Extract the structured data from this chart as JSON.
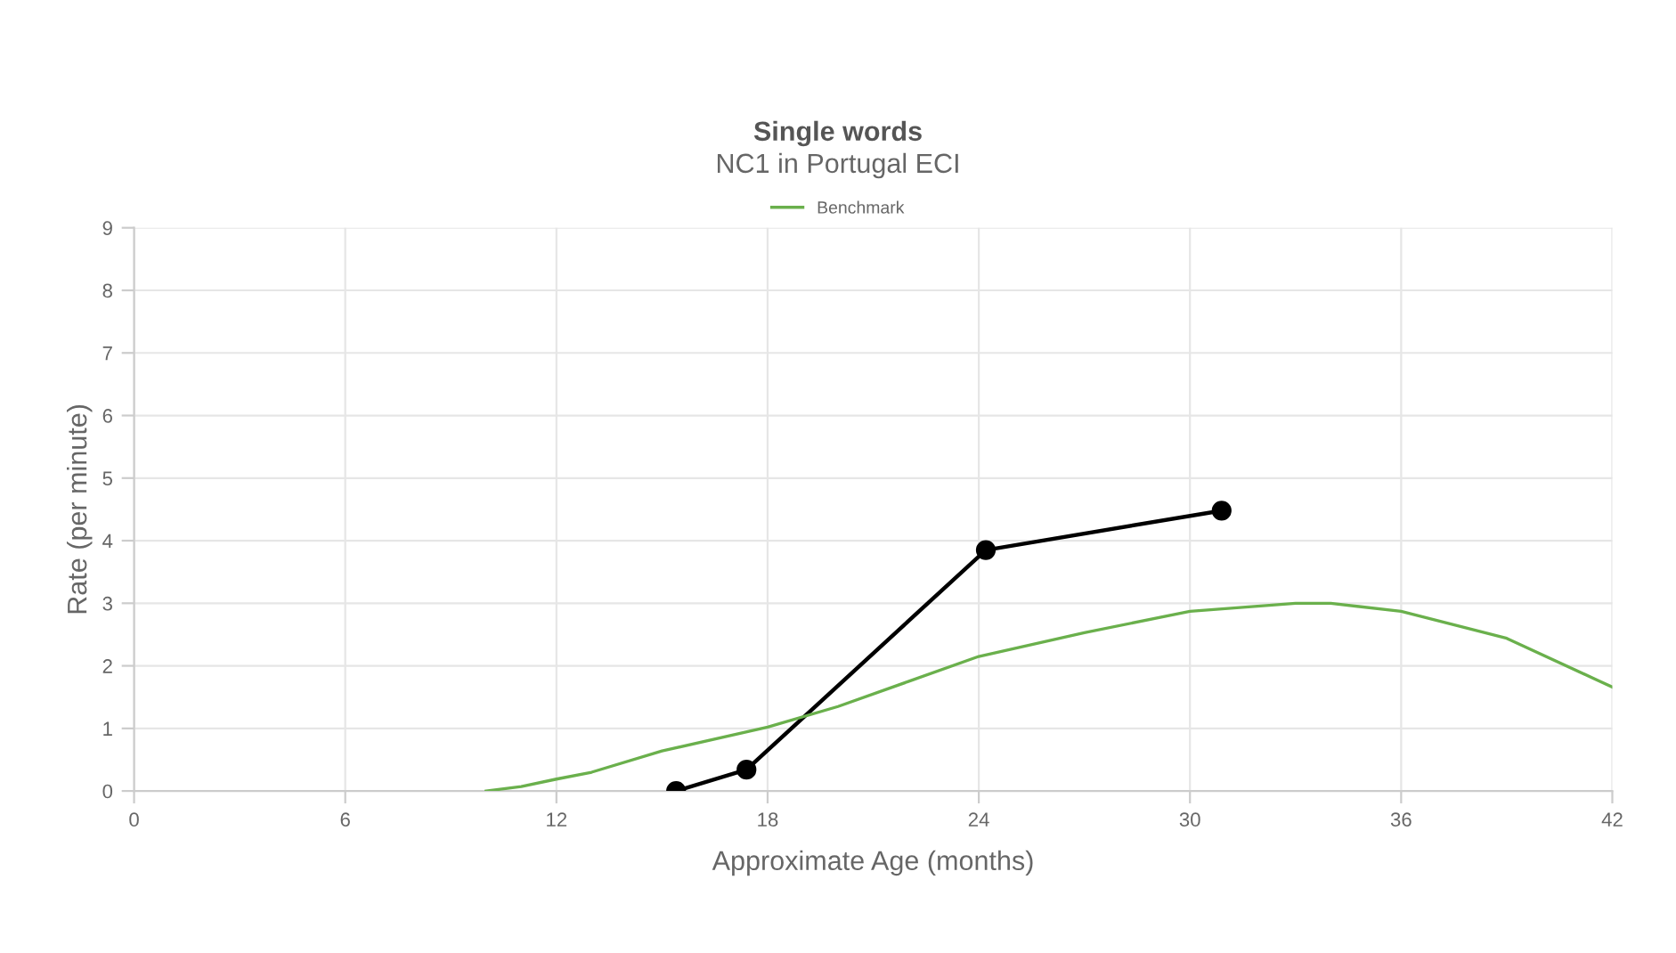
{
  "chart_data": {
    "type": "line",
    "title": "Single words",
    "subtitle": "NC1 in Portugal ECI",
    "xlabel": "Approximate Age (months)",
    "ylabel": "Rate (per minute)",
    "series": [
      {
        "x": [
          15.4,
          17.4,
          24.2,
          30.9
        ],
        "values": [
          0,
          0.34,
          3.85,
          4.48
        ],
        "color": "#000000",
        "marker": "circle"
      },
      {
        "name": "Benchmark",
        "x": [
          10,
          11,
          12,
          13,
          15,
          18,
          20,
          22,
          24,
          27,
          30,
          33,
          34,
          36,
          39,
          42
        ],
        "values": [
          0,
          0.07,
          0.19,
          0.3,
          0.64,
          1.02,
          1.35,
          1.75,
          2.15,
          2.53,
          2.87,
          3.0,
          3.0,
          2.87,
          2.44,
          1.66
        ],
        "color": "#6ab04c",
        "marker": "none"
      }
    ],
    "xlim": [
      0,
      42
    ],
    "xticks": [
      0,
      6,
      12,
      18,
      24,
      30,
      36,
      42
    ],
    "ylim": [
      0,
      9
    ],
    "yticks": [
      0,
      1,
      2,
      3,
      4,
      5,
      6,
      7,
      8,
      9
    ],
    "grid": true,
    "legend": "top"
  }
}
